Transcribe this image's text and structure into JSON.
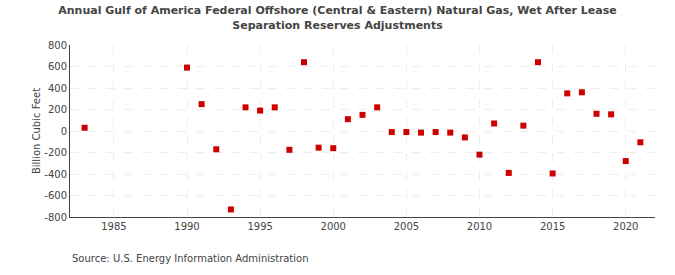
{
  "chart_data": {
    "type": "scatter",
    "title": "Annual Gulf of America Federal Offshore (Central & Eastern) Natural Gas, Wet After Lease\nSeparation Reserves Adjustments",
    "ylabel": "Billion Cubic Feet",
    "annotations": [
      "Source: U.S. Energy Information Administration"
    ],
    "x": [
      1983,
      1990,
      1991,
      1992,
      1993,
      1994,
      1995,
      1996,
      1997,
      1998,
      1999,
      2000,
      2001,
      2002,
      2003,
      2004,
      2005,
      2006,
      2007,
      2008,
      2009,
      2010,
      2011,
      2012,
      2013,
      2014,
      2015,
      2016,
      2017,
      2018,
      2019,
      2020,
      2021
    ],
    "values": [
      30,
      590,
      250,
      -170,
      -730,
      220,
      190,
      220,
      -175,
      640,
      -155,
      -160,
      110,
      150,
      220,
      -10,
      -10,
      -15,
      -10,
      -15,
      -60,
      -220,
      70,
      -390,
      50,
      640,
      -395,
      350,
      360,
      160,
      155,
      -280,
      -105
    ],
    "color": "#cc0000",
    "marker": "square",
    "xlim": [
      1982,
      2022
    ],
    "xticks": [
      1985,
      1990,
      1995,
      2000,
      2005,
      2010,
      2015,
      2020
    ],
    "ylim": [
      -800,
      800
    ],
    "yticks": [
      -800,
      -600,
      -400,
      -200,
      0,
      200,
      400,
      600,
      800
    ],
    "grid": true
  }
}
